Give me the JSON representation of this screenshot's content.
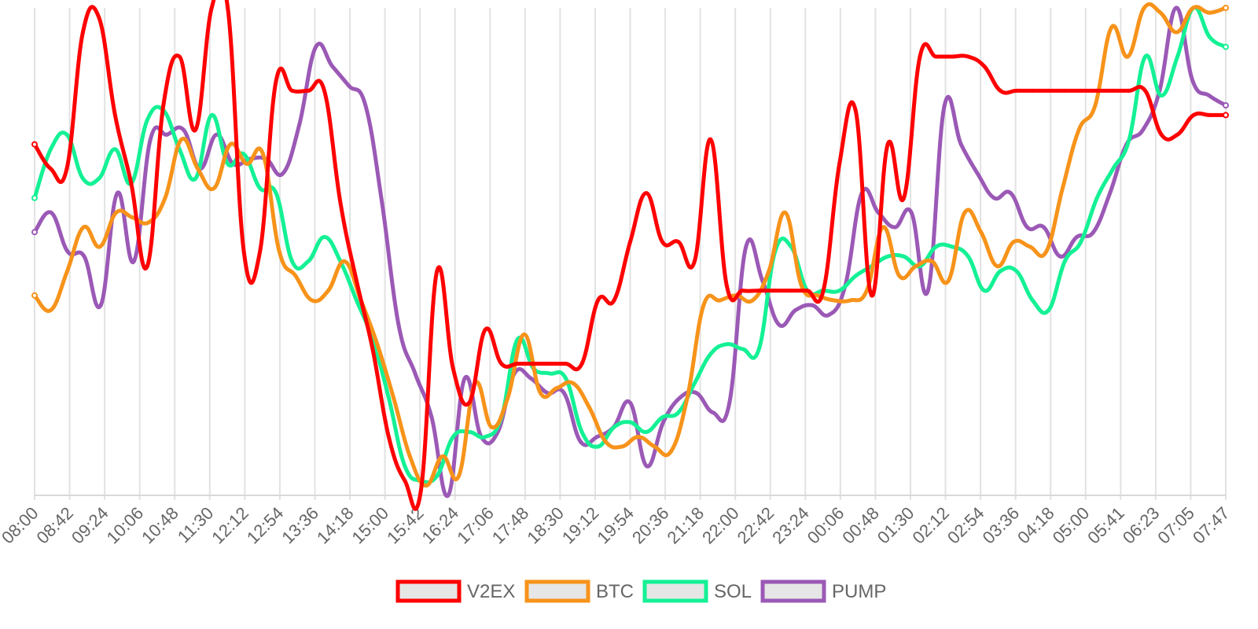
{
  "chart_data": {
    "type": "line",
    "title": "",
    "xlabel": "",
    "ylabel": "",
    "ylim": [
      0,
      100
    ],
    "x_tick_labels": [
      "08:00",
      "08:42",
      "09:24",
      "10:06",
      "10:48",
      "11:30",
      "12:12",
      "12:54",
      "13:36",
      "14:18",
      "15:00",
      "15:42",
      "16:24",
      "17:06",
      "17:48",
      "18:30",
      "19:12",
      "19:54",
      "20:36",
      "21:18",
      "22:00",
      "22:42",
      "23:24",
      "00:06",
      "00:48",
      "01:30",
      "02:12",
      "02:54",
      "03:36",
      "04:18",
      "05:00",
      "05:41",
      "06:23",
      "07:05",
      "07:47"
    ],
    "legend": {
      "placement": "bottom-center"
    },
    "series": [
      {
        "name": "V2EX",
        "color": "#ff0000",
        "values": [
          72,
          67,
          67,
          95,
          98,
          78,
          64,
          47,
          80,
          90,
          75,
          100,
          100,
          50,
          50,
          85,
          83,
          83,
          83,
          60,
          44,
          30,
          12,
          3,
          1,
          46,
          26,
          19,
          34,
          27,
          27,
          27,
          27,
          27,
          27,
          40,
          40,
          52,
          62,
          52,
          52,
          48,
          73,
          43,
          42,
          42,
          42,
          42,
          42,
          42,
          68,
          79,
          41,
          72,
          61,
          90,
          90,
          90,
          90,
          88,
          83,
          83,
          83,
          83,
          83,
          83,
          83,
          83,
          83,
          83,
          74,
          74,
          78,
          78,
          78
        ]
      },
      {
        "name": "BTC",
        "color": "#f7931a",
        "values": [
          41,
          38,
          46,
          55,
          51,
          58,
          57,
          56,
          61,
          73,
          67,
          63,
          72,
          68,
          70,
          50,
          45,
          40,
          42,
          48,
          40,
          31,
          20,
          8,
          2,
          8,
          4,
          23,
          14,
          20,
          33,
          21,
          22,
          23,
          18,
          11,
          10,
          12,
          10,
          9,
          20,
          39,
          40,
          41,
          40,
          46,
          58,
          43,
          41,
          40,
          40,
          42,
          55,
          45,
          47,
          48,
          44,
          58,
          54,
          47,
          52,
          51,
          50,
          63,
          75,
          80,
          96,
          90,
          100,
          99,
          95,
          100,
          99,
          100
        ]
      },
      {
        "name": "SOL",
        "color": "#14f195",
        "values": [
          61,
          71,
          74,
          65,
          65,
          71,
          64,
          77,
          79,
          71,
          65,
          78,
          68,
          70,
          63,
          62,
          48,
          48,
          53,
          48,
          40,
          32,
          20,
          6,
          3,
          4,
          12,
          13,
          12,
          16,
          32,
          26,
          25,
          24,
          13,
          10,
          14,
          15,
          13,
          16,
          17,
          23,
          29,
          31,
          30,
          30,
          50,
          51,
          42,
          42,
          42,
          45,
          47,
          49,
          49,
          47,
          51,
          51,
          49,
          42,
          46,
          46,
          40,
          38,
          48,
          52,
          61,
          67,
          73,
          90,
          82,
          90,
          100,
          94,
          92
        ]
      },
      {
        "name": "PUMP",
        "color": "#9b59b6",
        "values": [
          54,
          58,
          50,
          49,
          39,
          62,
          48,
          73,
          74,
          75,
          67,
          74,
          68,
          69,
          69,
          66,
          76,
          92,
          88,
          84,
          80,
          60,
          35,
          25,
          16,
          0,
          24,
          12,
          13,
          25,
          24,
          21,
          21,
          11,
          12,
          14,
          19,
          6,
          15,
          20,
          21,
          17,
          19,
          51,
          44,
          35,
          38,
          39,
          37,
          43,
          62,
          58,
          55,
          58,
          42,
          80,
          72,
          66,
          61,
          62,
          55,
          55,
          49,
          53,
          54,
          62,
          72,
          75,
          83,
          100,
          85,
          82,
          80
        ]
      }
    ]
  }
}
